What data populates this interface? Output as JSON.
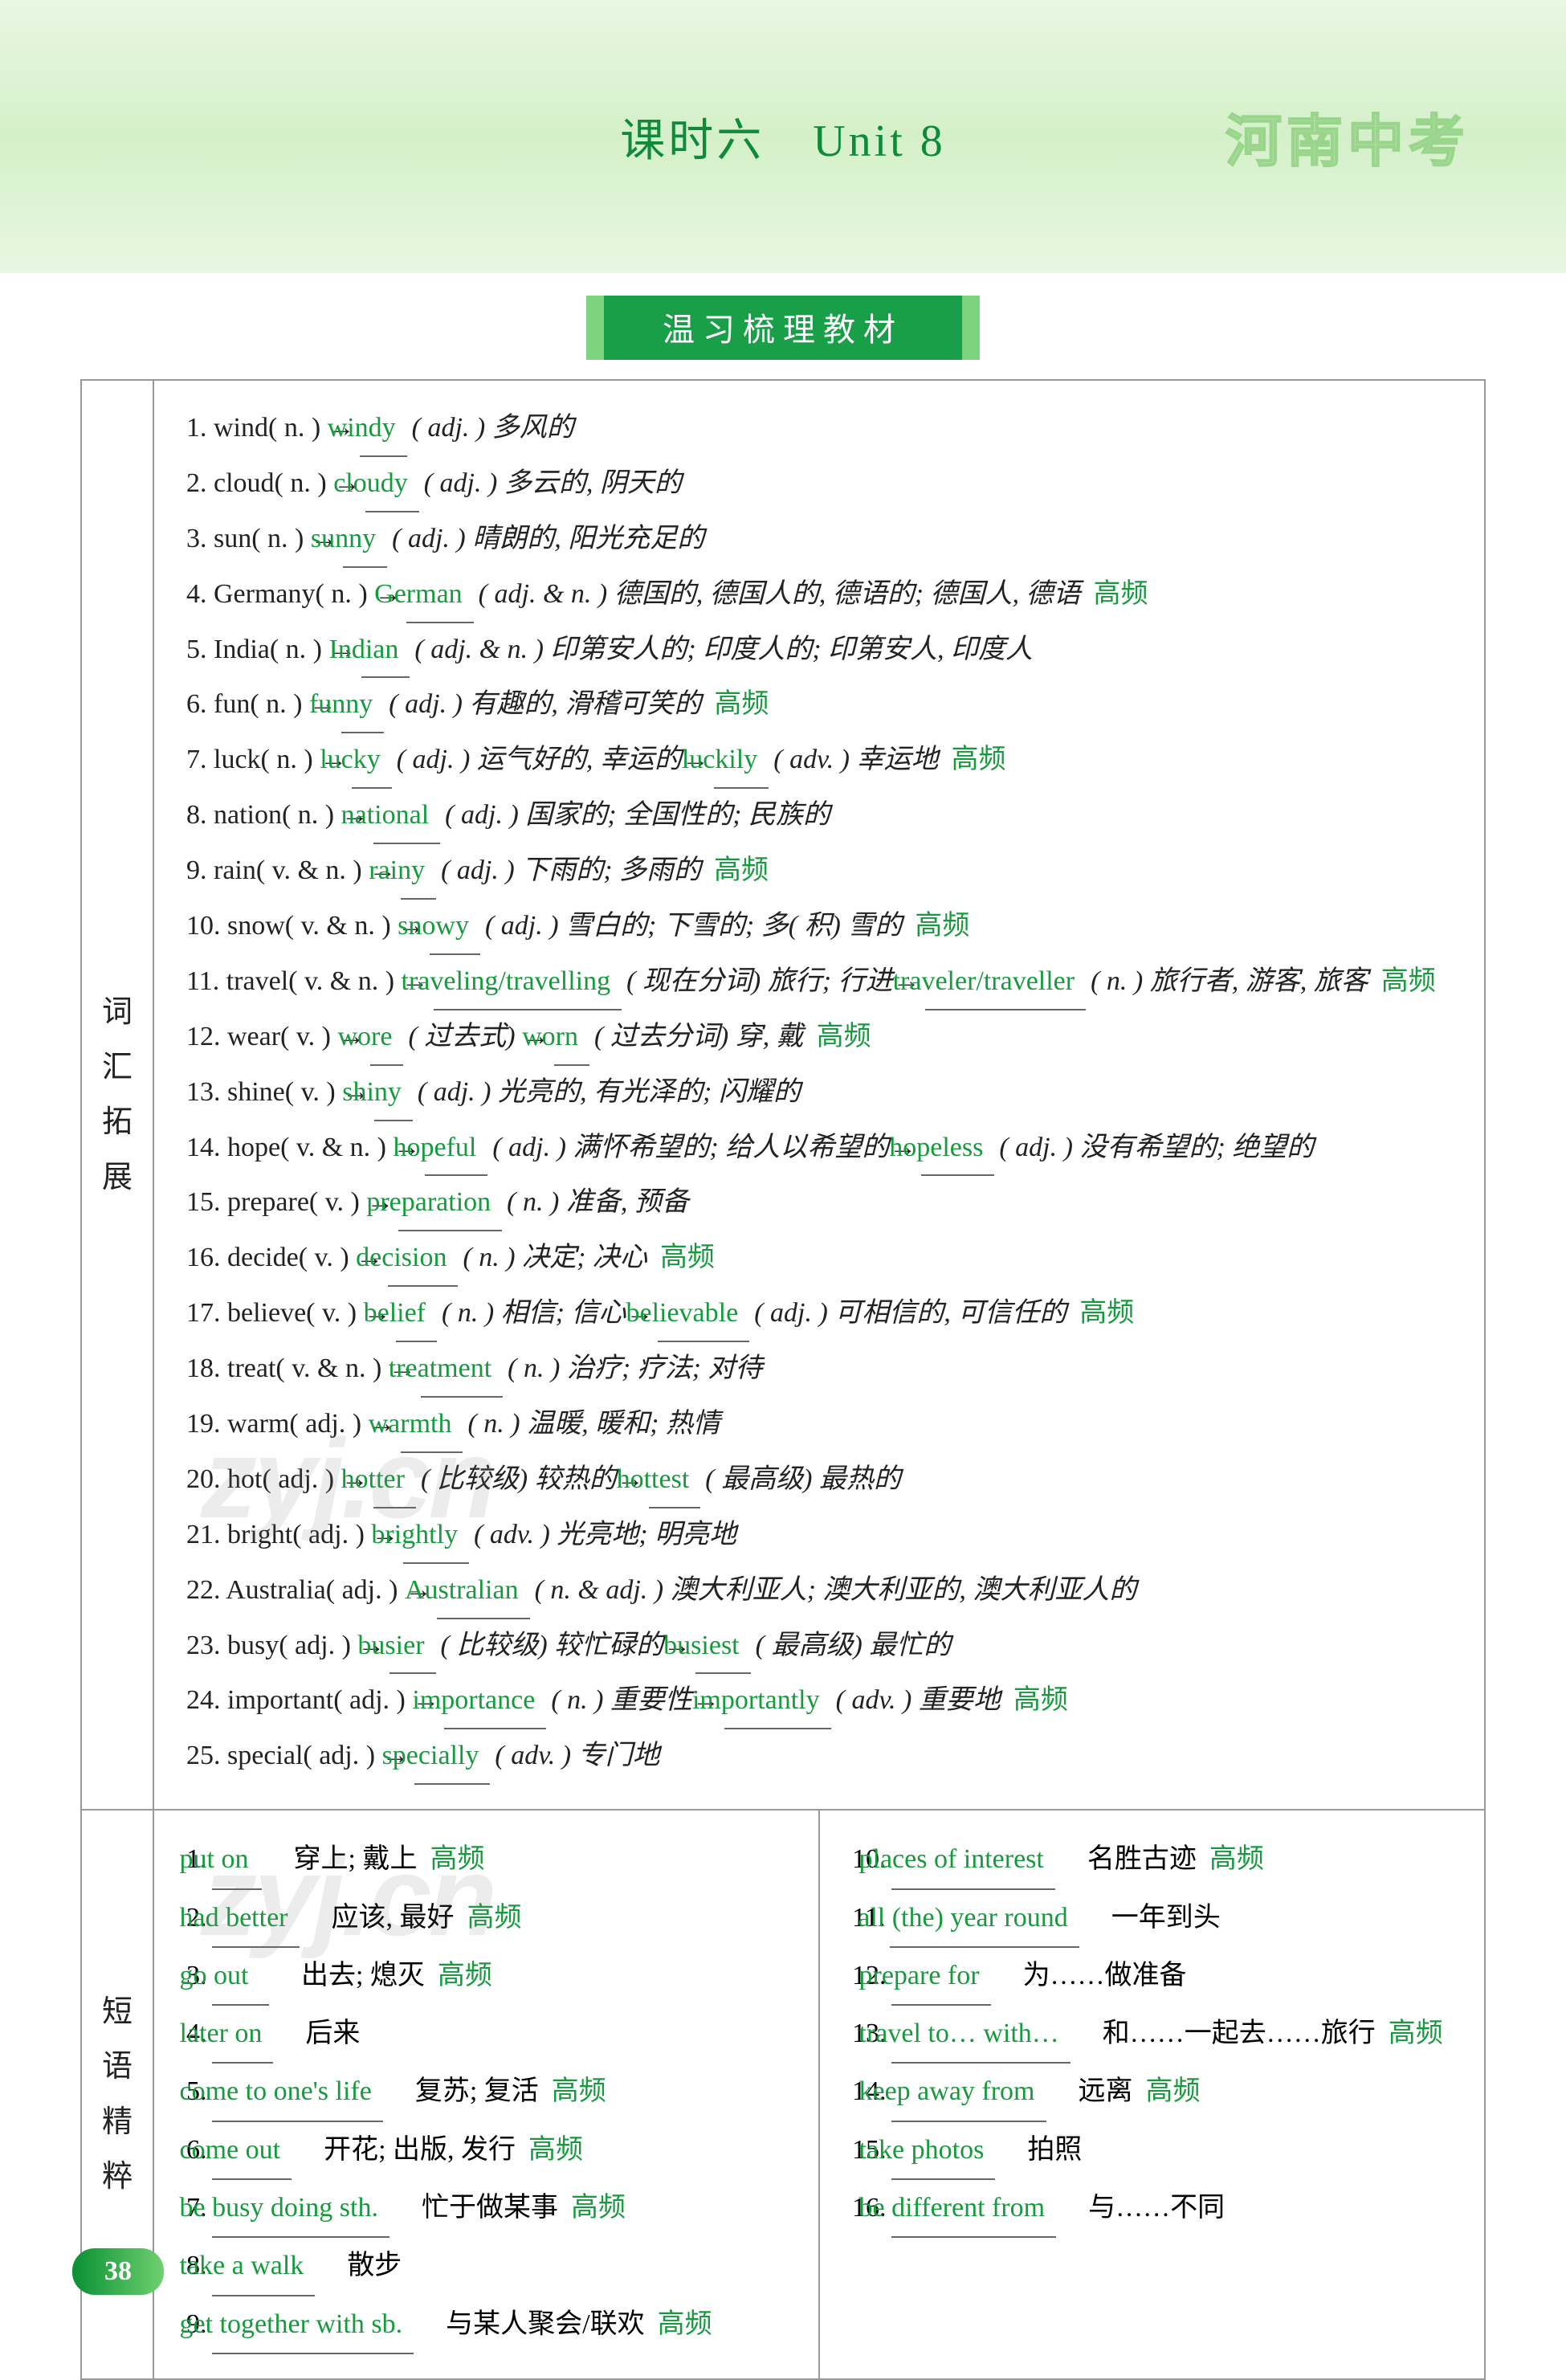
{
  "header": {
    "title": "课时六　Unit 8",
    "stamp": "河南中考"
  },
  "section_banner": "温习梳理教材",
  "vocab_label": [
    "词",
    "汇",
    "拓",
    "展"
  ],
  "vocab": [
    {
      "n": "1.",
      "pre": "wind( n. ) →",
      "b1": "windy",
      "mid1": "( adj. ) 多风的"
    },
    {
      "n": "2.",
      "pre": "cloud( n. ) →",
      "b1": "cloudy",
      "mid1": "( adj. ) 多云的, 阴天的"
    },
    {
      "n": "3.",
      "pre": "sun( n. ) →",
      "b1": "sunny",
      "mid1": "( adj. ) 晴朗的, 阳光充足的"
    },
    {
      "n": "4.",
      "pre": "Germany( n. ) →",
      "b1": "German",
      "mid1": "( adj. & n. ) 德国的, 德国人的, 德语的; 德国人, 德语",
      "hf": true
    },
    {
      "n": "5.",
      "pre": "India( n. ) →",
      "b1": "Indian",
      "mid1": "( adj. & n. ) 印第安人的; 印度人的; 印第安人, 印度人"
    },
    {
      "n": "6.",
      "pre": "fun( n. ) →",
      "b1": "funny",
      "mid1": "( adj. ) 有趣的, 滑稽可笑的",
      "hf": true
    },
    {
      "n": "7.",
      "pre": "luck( n. ) →",
      "b1": "lucky",
      "mid1": "( adj. ) 运气好的, 幸运的→",
      "b2": "luckily",
      "mid2": "( adv. ) 幸运地",
      "hf": true
    },
    {
      "n": "8.",
      "pre": "nation( n. ) →",
      "b1": "national",
      "mid1": "( adj. ) 国家的; 全国性的; 民族的"
    },
    {
      "n": "9.",
      "pre": "rain( v. & n. ) →",
      "b1": "rainy",
      "mid1": "( adj. ) 下雨的; 多雨的",
      "hf": true
    },
    {
      "n": "10.",
      "pre": "snow( v. & n. ) →",
      "b1": "snowy",
      "mid1": "( adj. ) 雪白的; 下雪的; 多( 积) 雪的",
      "hf": true
    },
    {
      "n": "11.",
      "pre": "travel( v. & n. ) →",
      "b1": "traveling/travelling",
      "mid1": "( 现在分词) 旅行; 行进→",
      "b2": "traveler/traveller",
      "mid2": "( n. ) 旅行者, 游客, 旅客",
      "hf": true
    },
    {
      "n": "12.",
      "pre": "wear( v. ) →",
      "b1": "wore",
      "mid1": "( 过去式) →",
      "b2": "worn",
      "mid2": "( 过去分词) 穿, 戴",
      "hf": true
    },
    {
      "n": "13.",
      "pre": "shine( v. ) →",
      "b1": "shiny",
      "mid1": "( adj. ) 光亮的, 有光泽的; 闪耀的"
    },
    {
      "n": "14.",
      "pre": "hope( v. & n. ) →",
      "b1": "hopeful",
      "mid1": "( adj. ) 满怀希望的; 给人以希望的→",
      "b2": "hopeless",
      "mid2": "( adj. ) 没有希望的; 绝望的"
    },
    {
      "n": "15.",
      "pre": "prepare( v. ) →",
      "b1": "preparation",
      "mid1": "( n. ) 准备, 预备"
    },
    {
      "n": "16.",
      "pre": "decide( v. ) →",
      "b1": "decision",
      "mid1": "( n. ) 决定; 决心",
      "hf": true
    },
    {
      "n": "17.",
      "pre": "believe( v. ) →",
      "b1": "belief",
      "mid1": "( n. ) 相信; 信心→",
      "b2": "believable",
      "mid2": "( adj. ) 可相信的, 可信任的",
      "hf": true
    },
    {
      "n": "18.",
      "pre": "treat( v. & n. ) →",
      "b1": "treatment",
      "mid1": "( n. ) 治疗; 疗法; 对待"
    },
    {
      "n": "19.",
      "pre": "warm( adj. ) →",
      "b1": "warmth",
      "mid1": "( n. ) 温暖, 暖和; 热情"
    },
    {
      "n": "20.",
      "pre": "hot( adj. ) →",
      "b1": "hotter",
      "mid1": "( 比较级) 较热的→",
      "b2": "hottest",
      "mid2": "( 最高级) 最热的"
    },
    {
      "n": "21.",
      "pre": "bright( adj. ) →",
      "b1": "brightly",
      "mid1": "( adv. ) 光亮地; 明亮地"
    },
    {
      "n": "22.",
      "pre": "Australia( adj. ) →",
      "b1": "Australian",
      "mid1": "( n. & adj. ) 澳大利亚人; 澳大利亚的, 澳大利亚人的"
    },
    {
      "n": "23.",
      "pre": "busy( adj. ) →",
      "b1": "busier",
      "mid1": "( 比较级) 较忙碌的→",
      "b2": "busiest",
      "mid2": "( 最高级) 最忙的"
    },
    {
      "n": "24.",
      "pre": "important( adj. ) →",
      "b1": "importance",
      "mid1": "( n. ) 重要性→",
      "b2": "importantly",
      "mid2": "( adv. ) 重要地",
      "hf": true
    },
    {
      "n": "25.",
      "pre": "special( adj. ) →",
      "b1": "specially",
      "mid1": "( adv. ) 专门地"
    }
  ],
  "phrase_label": [
    "短",
    "语",
    "精",
    "粹"
  ],
  "phrases_left": [
    {
      "n": "1.",
      "b": "put on",
      "t": "穿上; 戴上",
      "hf": true
    },
    {
      "n": "2.",
      "b": "had better",
      "t": "应该, 最好",
      "hf": true
    },
    {
      "n": "3.",
      "b": "go out",
      "t": "出去; 熄灭",
      "hf": true
    },
    {
      "n": "4.",
      "b": "later on",
      "t": "后来"
    },
    {
      "n": "5.",
      "b": "come to one's life",
      "t": "复苏; 复活",
      "hf": true
    },
    {
      "n": "6.",
      "b": "come out",
      "t": "开花; 出版, 发行",
      "hf": true
    },
    {
      "n": "7.",
      "b": "be busy doing sth.",
      "t": "忙于做某事",
      "hf": true
    },
    {
      "n": "8.",
      "b": "take a walk",
      "t": "散步"
    },
    {
      "n": "9.",
      "b": "get together with sb.",
      "t": "与某人聚会/联欢",
      "hf": true
    }
  ],
  "phrases_right": [
    {
      "n": "10.",
      "b": "places of interest",
      "t": "名胜古迹",
      "hf": true
    },
    {
      "n": "11.",
      "b": "all (the) year round",
      "t": "一年到头"
    },
    {
      "n": "12.",
      "b": "prepare for",
      "t": "为……做准备"
    },
    {
      "n": "13.",
      "b": "travel to… with…",
      "t": "和……一起去……旅行",
      "hf": true
    },
    {
      "n": "14.",
      "b": "keep away from",
      "t": "远离",
      "hf": true
    },
    {
      "n": "15.",
      "b": "take photos",
      "t": "拍照"
    },
    {
      "n": "16.",
      "b": "be different from",
      "t": "与……不同"
    }
  ],
  "page_number": "38",
  "watermark": "zyj.cn",
  "hf_label": "高频"
}
